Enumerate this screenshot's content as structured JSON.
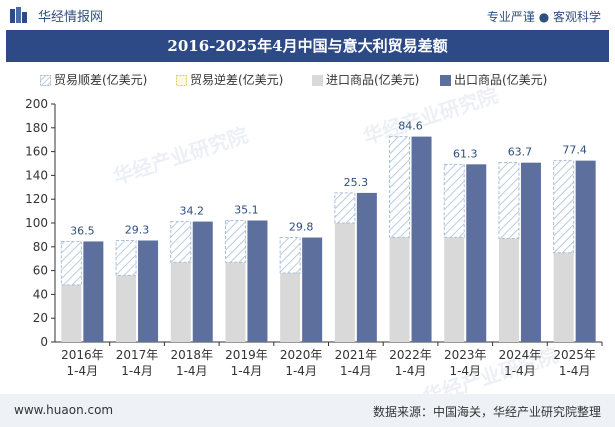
{
  "header": {
    "brand": "华经情报网",
    "tagline": "专业严谨 ● 客观科学"
  },
  "title": "2016-2025年4月中国与意大利贸易差额",
  "legend": {
    "surplus": "贸易顺差(亿美元)",
    "deficit": "贸易逆差(亿美元)",
    "imports": "进口商品(亿美元)",
    "exports": "出口商品(亿美元)"
  },
  "watermark": "华经产业研究院",
  "footer": {
    "site": "www.huaon.com",
    "source": "数据来源：中国海关，华经产业研究院整理"
  },
  "colors": {
    "title_bg": "#2d4a86",
    "imports": "#d9d9d9",
    "exports": "#5c6f9d",
    "surplus_stripe": "#a8bfd8",
    "label": "#2f4f7f",
    "footer_bg": "#eef2f7"
  },
  "chart_data": {
    "type": "bar",
    "categories": [
      "2016年\n1-4月",
      "2017年\n1-4月",
      "2018年\n1-4月",
      "2019年\n1-4月",
      "2020年\n1-4月",
      "2021年\n1-4月",
      "2022年\n1-4月",
      "2023年\n1-4月",
      "2024年\n1-4月",
      "2025年\n1-4月"
    ],
    "series": [
      {
        "name": "进口商品(亿美元)",
        "values": [
          48,
          56,
          67,
          67,
          58,
          100,
          88,
          88,
          87,
          75
        ]
      },
      {
        "name": "出口商品(亿美元)",
        "values": [
          84.5,
          85.3,
          101.2,
          102.1,
          87.8,
          125.3,
          172.6,
          149.3,
          150.7,
          152.4
        ]
      },
      {
        "name": "贸易顺差(亿美元)",
        "values": [
          36.5,
          29.3,
          34.2,
          35.1,
          29.8,
          25.3,
          84.6,
          61.3,
          63.7,
          77.4
        ]
      },
      {
        "name": "贸易逆差(亿美元)",
        "values": [
          0,
          0,
          0,
          0,
          0,
          0,
          0,
          0,
          0,
          0
        ]
      }
    ],
    "ylim": [
      0,
      200
    ],
    "yticks": [
      0,
      20,
      40,
      60,
      80,
      100,
      120,
      140,
      160,
      180,
      200
    ],
    "grid": false,
    "legend_position": "top"
  }
}
